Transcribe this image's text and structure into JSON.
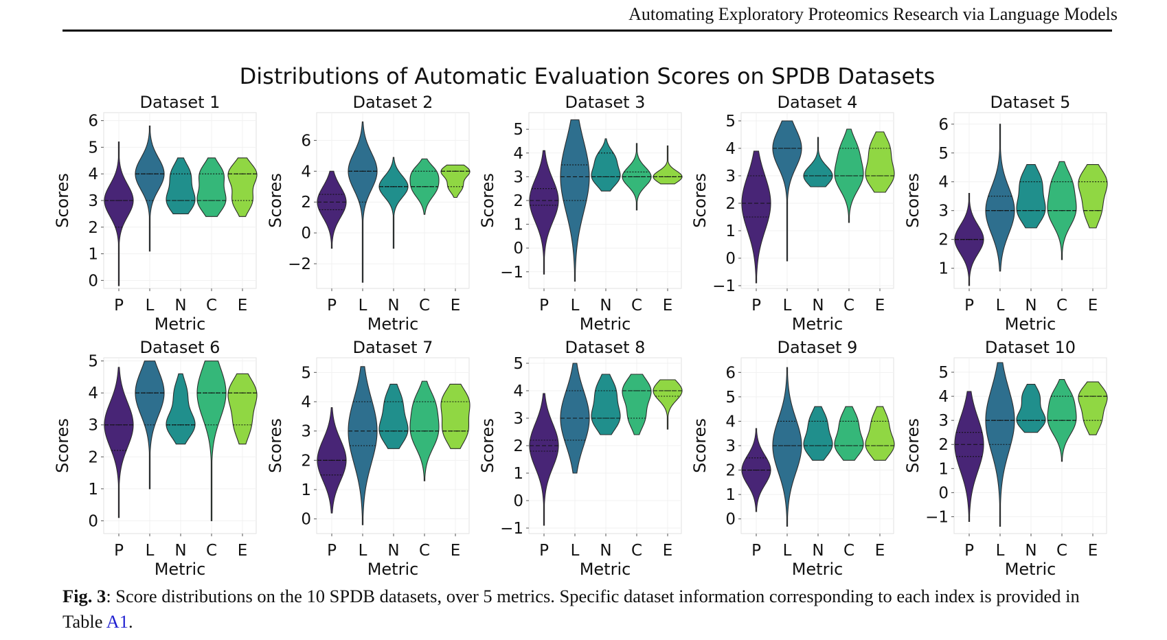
{
  "header": {
    "running_title": "Automating Exploratory Proteomics Research via Language Models"
  },
  "caption": {
    "label": "Fig. 3",
    "text": ": Score distributions on the 10 SPDB datasets, over 5 metrics. Specific dataset information corresponding to each index is provided in Table ",
    "ref": "A1",
    "end": "."
  },
  "chart_data": {
    "type": "violin",
    "title": "Distributions of Automatic Evaluation Scores on SPDB Datasets",
    "xlabel": "Metric",
    "ylabel": "Scores",
    "categories": [
      "P",
      "L",
      "N",
      "C",
      "E"
    ],
    "colors": [
      "#482576",
      "#2e6f8e",
      "#208f8c",
      "#35b779",
      "#90d743"
    ],
    "grid": true,
    "panels": [
      {
        "title": "Dataset 1",
        "ylim": [
          -0.3,
          6.3
        ],
        "yticks": [
          0,
          1,
          2,
          3,
          4,
          5,
          6
        ],
        "violins": [
          {
            "min": -0.2,
            "max": 5.2,
            "q1": 2.0,
            "median": 3.0,
            "q3": 3.0,
            "modes": [
              [
                3.0,
                1.0,
                0.6
              ]
            ]
          },
          {
            "min": 1.1,
            "max": 5.8,
            "q1": 3.0,
            "median": 4.0,
            "q3": 4.0,
            "modes": [
              [
                4.0,
                1.0,
                0.6
              ]
            ]
          },
          {
            "min": 2.5,
            "max": 4.6,
            "q1": 3.0,
            "median": 3.0,
            "q3": 4.0,
            "modes": [
              [
                3.0,
                1.0,
                0.45
              ],
              [
                4.0,
                0.65,
                0.4
              ]
            ]
          },
          {
            "min": 2.4,
            "max": 4.6,
            "q1": 3.0,
            "median": 3.0,
            "q3": 4.0,
            "modes": [
              [
                3.0,
                1.0,
                0.45
              ],
              [
                4.0,
                0.8,
                0.4
              ]
            ]
          },
          {
            "min": 2.4,
            "max": 4.6,
            "q1": 3.0,
            "median": 4.0,
            "q3": 4.0,
            "modes": [
              [
                4.0,
                1.0,
                0.4
              ],
              [
                3.0,
                0.7,
                0.4
              ]
            ]
          }
        ]
      },
      {
        "title": "Dataset 2",
        "ylim": [
          -3.6,
          7.8
        ],
        "yticks": [
          -2,
          0,
          2,
          4,
          6
        ],
        "violins": [
          {
            "min": -1.0,
            "max": 4.0,
            "q1": 1.5,
            "median": 2.0,
            "q3": 2.5,
            "modes": [
              [
                2.0,
                1.0,
                1.0
              ]
            ]
          },
          {
            "min": -3.2,
            "max": 7.2,
            "q1": 2.0,
            "median": 4.0,
            "q3": 4.0,
            "modes": [
              [
                4.0,
                1.0,
                1.2
              ]
            ]
          },
          {
            "min": -1.0,
            "max": 4.9,
            "q1": 3.0,
            "median": 3.0,
            "q3": 3.0,
            "modes": [
              [
                3.0,
                1.0,
                0.7
              ]
            ]
          },
          {
            "min": 1.2,
            "max": 4.8,
            "q1": 3.0,
            "median": 3.0,
            "q3": 4.0,
            "modes": [
              [
                3.0,
                1.0,
                0.7
              ],
              [
                4.0,
                0.6,
                0.5
              ]
            ]
          },
          {
            "min": 2.3,
            "max": 4.4,
            "q1": 3.0,
            "median": 4.0,
            "q3": 4.0,
            "modes": [
              [
                4.0,
                1.0,
                0.4
              ],
              [
                3.0,
                0.5,
                0.4
              ]
            ]
          }
        ]
      },
      {
        "title": "Dataset 3",
        "ylim": [
          -1.7,
          5.7
        ],
        "yticks": [
          -1,
          0,
          1,
          2,
          3,
          4,
          5
        ],
        "violins": [
          {
            "min": -1.1,
            "max": 4.1,
            "q1": 1.8,
            "median": 2.0,
            "q3": 2.5,
            "modes": [
              [
                2.0,
                1.0,
                0.9
              ]
            ]
          },
          {
            "min": -1.4,
            "max": 5.4,
            "q1": 2.0,
            "median": 3.0,
            "q3": 3.5,
            "modes": [
              [
                3.0,
                1.0,
                1.5
              ]
            ]
          },
          {
            "min": 2.4,
            "max": 4.6,
            "q1": 3.0,
            "median": 3.0,
            "q3": 4.0,
            "modes": [
              [
                3.0,
                1.0,
                0.4
              ],
              [
                3.8,
                0.6,
                0.35
              ]
            ]
          },
          {
            "min": 1.6,
            "max": 4.4,
            "q1": 3.0,
            "median": 3.0,
            "q3": 3.2,
            "modes": [
              [
                3.0,
                1.0,
                0.4
              ]
            ]
          },
          {
            "min": 2.7,
            "max": 4.3,
            "q1": 3.0,
            "median": 3.0,
            "q3": 3.0,
            "modes": [
              [
                3.0,
                1.0,
                0.25
              ]
            ]
          }
        ]
      },
      {
        "title": "Dataset 4",
        "ylim": [
          -1.1,
          5.3
        ],
        "yticks": [
          -1,
          0,
          1,
          2,
          3,
          4,
          5
        ],
        "violins": [
          {
            "min": -0.9,
            "max": 3.9,
            "q1": 1.5,
            "median": 2.0,
            "q3": 3.0,
            "modes": [
              [
                2.0,
                1.0,
                1.0
              ]
            ]
          },
          {
            "min": -0.1,
            "max": 5.0,
            "q1": 2.0,
            "median": 4.0,
            "q3": 4.0,
            "modes": [
              [
                4.0,
                1.0,
                0.7
              ]
            ]
          },
          {
            "min": 2.6,
            "max": 4.4,
            "q1": 3.0,
            "median": 3.0,
            "q3": 3.0,
            "modes": [
              [
                3.0,
                1.0,
                0.35
              ]
            ]
          },
          {
            "min": 1.3,
            "max": 4.7,
            "q1": 3.0,
            "median": 3.0,
            "q3": 4.0,
            "modes": [
              [
                3.0,
                1.0,
                0.55
              ],
              [
                4.0,
                0.5,
                0.45
              ]
            ]
          },
          {
            "min": 2.4,
            "max": 4.6,
            "q1": 3.0,
            "median": 3.0,
            "q3": 4.0,
            "modes": [
              [
                3.0,
                1.0,
                0.45
              ],
              [
                4.0,
                0.7,
                0.45
              ]
            ]
          }
        ]
      },
      {
        "title": "Dataset 5",
        "ylim": [
          0.3,
          6.4
        ],
        "yticks": [
          1,
          2,
          3,
          4,
          5,
          6
        ],
        "violins": [
          {
            "min": 0.4,
            "max": 3.6,
            "q1": 2.0,
            "median": 2.0,
            "q3": 2.0,
            "modes": [
              [
                2.0,
                1.0,
                0.5
              ]
            ]
          },
          {
            "min": 0.9,
            "max": 6.0,
            "q1": 3.0,
            "median": 3.0,
            "q3": 3.5,
            "modes": [
              [
                3.0,
                1.0,
                0.8
              ]
            ]
          },
          {
            "min": 2.4,
            "max": 4.6,
            "q1": 3.0,
            "median": 3.0,
            "q3": 4.0,
            "modes": [
              [
                3.0,
                1.0,
                0.45
              ],
              [
                4.0,
                0.75,
                0.45
              ]
            ]
          },
          {
            "min": 1.3,
            "max": 4.7,
            "q1": 3.0,
            "median": 3.0,
            "q3": 4.0,
            "modes": [
              [
                3.0,
                1.0,
                0.55
              ],
              [
                4.0,
                0.6,
                0.45
              ]
            ]
          },
          {
            "min": 2.4,
            "max": 4.6,
            "q1": 3.0,
            "median": 3.0,
            "q3": 4.0,
            "modes": [
              [
                4.0,
                1.0,
                0.45
              ],
              [
                3.0,
                0.6,
                0.45
              ]
            ]
          }
        ]
      },
      {
        "title": "Dataset 6",
        "ylim": [
          -0.4,
          5.1
        ],
        "yticks": [
          0,
          1,
          2,
          3,
          4,
          5
        ],
        "violins": [
          {
            "min": 0.1,
            "max": 4.8,
            "q1": 2.2,
            "median": 3.0,
            "q3": 3.0,
            "modes": [
              [
                3.0,
                1.0,
                0.7
              ]
            ]
          },
          {
            "min": 1.0,
            "max": 5.0,
            "q1": 3.0,
            "median": 4.0,
            "q3": 4.0,
            "modes": [
              [
                4.0,
                1.0,
                0.7
              ]
            ]
          },
          {
            "min": 2.4,
            "max": 4.6,
            "q1": 3.0,
            "median": 3.0,
            "q3": 3.0,
            "modes": [
              [
                3.0,
                1.0,
                0.4
              ],
              [
                4.0,
                0.45,
                0.4
              ]
            ]
          },
          {
            "min": 0.0,
            "max": 5.0,
            "q1": 3.0,
            "median": 4.0,
            "q3": 4.0,
            "modes": [
              [
                4.0,
                1.0,
                0.8
              ]
            ]
          },
          {
            "min": 2.4,
            "max": 4.6,
            "q1": 3.0,
            "median": 4.0,
            "q3": 4.0,
            "modes": [
              [
                4.0,
                1.0,
                0.45
              ],
              [
                3.0,
                0.6,
                0.45
              ]
            ]
          }
        ]
      },
      {
        "title": "Dataset 7",
        "ylim": [
          -0.5,
          5.5
        ],
        "yticks": [
          0,
          1,
          2,
          3,
          4,
          5
        ],
        "violins": [
          {
            "min": 0.2,
            "max": 3.8,
            "q1": 1.5,
            "median": 2.0,
            "q3": 2.0,
            "modes": [
              [
                2.0,
                1.0,
                0.7
              ]
            ]
          },
          {
            "min": -0.2,
            "max": 5.2,
            "q1": 2.5,
            "median": 3.0,
            "q3": 4.0,
            "modes": [
              [
                3.0,
                1.0,
                1.1
              ]
            ]
          },
          {
            "min": 2.4,
            "max": 4.6,
            "q1": 3.0,
            "median": 3.0,
            "q3": 4.0,
            "modes": [
              [
                3.0,
                1.0,
                0.45
              ],
              [
                4.0,
                0.6,
                0.45
              ]
            ]
          },
          {
            "min": 1.3,
            "max": 4.7,
            "q1": 3.0,
            "median": 3.0,
            "q3": 4.0,
            "modes": [
              [
                3.0,
                1.0,
                0.6
              ],
              [
                4.0,
                0.55,
                0.45
              ]
            ]
          },
          {
            "min": 2.4,
            "max": 4.6,
            "q1": 3.0,
            "median": 3.0,
            "q3": 4.0,
            "modes": [
              [
                4.0,
                0.95,
                0.45
              ],
              [
                3.0,
                0.85,
                0.45
              ]
            ]
          }
        ]
      },
      {
        "title": "Dataset 8",
        "ylim": [
          -1.2,
          5.2
        ],
        "yticks": [
          -1,
          0,
          1,
          2,
          3,
          4,
          5
        ],
        "violins": [
          {
            "min": -0.9,
            "max": 3.9,
            "q1": 1.8,
            "median": 2.0,
            "q3": 2.2,
            "modes": [
              [
                2.0,
                1.0,
                0.8
              ]
            ]
          },
          {
            "min": 1.0,
            "max": 5.0,
            "q1": 2.2,
            "median": 3.0,
            "q3": 4.0,
            "modes": [
              [
                3.0,
                1.0,
                1.0
              ]
            ]
          },
          {
            "min": 2.4,
            "max": 4.6,
            "q1": 3.0,
            "median": 3.0,
            "q3": 4.0,
            "modes": [
              [
                3.0,
                1.0,
                0.45
              ],
              [
                4.0,
                0.7,
                0.45
              ]
            ]
          },
          {
            "min": 2.4,
            "max": 4.6,
            "q1": 3.0,
            "median": 4.0,
            "q3": 4.0,
            "modes": [
              [
                4.0,
                1.0,
                0.45
              ],
              [
                3.0,
                0.55,
                0.4
              ]
            ]
          },
          {
            "min": 2.6,
            "max": 4.4,
            "q1": 3.8,
            "median": 4.0,
            "q3": 4.0,
            "modes": [
              [
                4.0,
                1.0,
                0.35
              ]
            ]
          }
        ]
      },
      {
        "title": "Dataset 9",
        "ylim": [
          -0.6,
          6.6
        ],
        "yticks": [
          0,
          1,
          2,
          3,
          4,
          5,
          6
        ],
        "violins": [
          {
            "min": 0.3,
            "max": 3.7,
            "q1": 2.0,
            "median": 2.0,
            "q3": 2.5,
            "modes": [
              [
                2.0,
                1.0,
                0.6
              ]
            ]
          },
          {
            "min": -0.3,
            "max": 6.2,
            "q1": 3.0,
            "median": 3.0,
            "q3": 4.0,
            "modes": [
              [
                3.0,
                1.0,
                1.1
              ]
            ]
          },
          {
            "min": 2.4,
            "max": 4.6,
            "q1": 3.0,
            "median": 3.0,
            "q3": 4.0,
            "modes": [
              [
                3.0,
                1.0,
                0.45
              ],
              [
                4.0,
                0.6,
                0.45
              ]
            ]
          },
          {
            "min": 2.4,
            "max": 4.6,
            "q1": 3.0,
            "median": 3.0,
            "q3": 4.0,
            "modes": [
              [
                3.0,
                1.0,
                0.45
              ],
              [
                4.0,
                0.6,
                0.45
              ]
            ]
          },
          {
            "min": 2.4,
            "max": 4.6,
            "q1": 3.0,
            "median": 3.0,
            "q3": 4.0,
            "modes": [
              [
                3.0,
                1.0,
                0.45
              ],
              [
                4.0,
                0.55,
                0.45
              ]
            ]
          }
        ]
      },
      {
        "title": "Dataset 10",
        "ylim": [
          -1.7,
          5.6
        ],
        "yticks": [
          -1,
          0,
          1,
          2,
          3,
          4,
          5
        ],
        "violins": [
          {
            "min": -1.2,
            "max": 4.2,
            "q1": 1.5,
            "median": 2.0,
            "q3": 2.5,
            "modes": [
              [
                2.0,
                1.0,
                1.1
              ]
            ]
          },
          {
            "min": -1.4,
            "max": 5.4,
            "q1": 2.0,
            "median": 3.0,
            "q3": 3.0,
            "modes": [
              [
                3.0,
                1.0,
                1.3
              ]
            ]
          },
          {
            "min": 2.5,
            "max": 4.5,
            "q1": 3.0,
            "median": 3.0,
            "q3": 3.0,
            "modes": [
              [
                3.0,
                1.0,
                0.4
              ],
              [
                4.0,
                0.6,
                0.4
              ]
            ]
          },
          {
            "min": 1.3,
            "max": 4.7,
            "q1": 3.0,
            "median": 3.0,
            "q3": 4.0,
            "modes": [
              [
                3.0,
                1.0,
                0.6
              ],
              [
                4.0,
                0.55,
                0.45
              ]
            ]
          },
          {
            "min": 2.4,
            "max": 4.6,
            "q1": 3.0,
            "median": 4.0,
            "q3": 4.0,
            "modes": [
              [
                4.0,
                1.0,
                0.45
              ],
              [
                3.0,
                0.6,
                0.45
              ]
            ]
          }
        ]
      }
    ]
  }
}
